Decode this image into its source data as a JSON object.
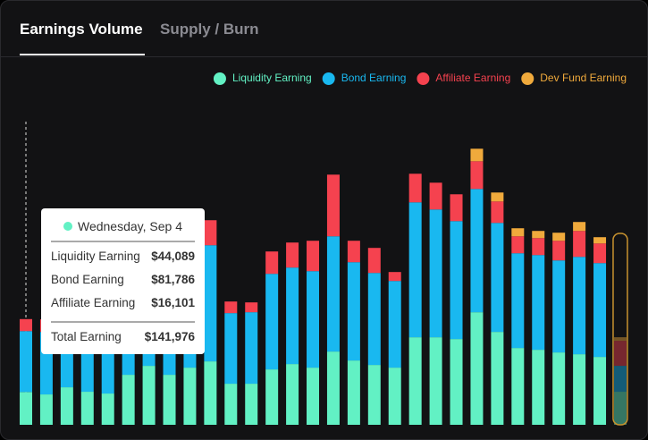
{
  "tabs": [
    "Earnings Volume",
    "Supply / Burn"
  ],
  "chart_data": {
    "type": "stacked_bar",
    "ylim": [
      0,
      400000
    ],
    "series": [
      {
        "name": "Liquidity Earning",
        "color": "#62f1c4",
        "values": [
          44089,
          40800,
          50400,
          44400,
          42000,
          67200,
          79200,
          67200,
          76800,
          85200,
          55200,
          55200,
          74400,
          81600,
          76800,
          98400,
          86400,
          80400,
          76800,
          117600,
          117600,
          115200,
          151200,
          124800,
          103200,
          100800,
          97200,
          94800,
          91200,
          44400
        ]
      },
      {
        "name": "Bond Earning",
        "color": "#19b8f0",
        "values": [
          81786,
          84000,
          78000,
          72000,
          66000,
          72000,
          78000,
          84000,
          156000,
          156000,
          94800,
          96000,
          128400,
          129600,
          129600,
          154800,
          132000,
          123600,
          116400,
          181200,
          171600,
          158400,
          165600,
          146400,
          127200,
          127200,
          123600,
          130800,
          126000,
          34800
        ]
      },
      {
        "name": "Affiliate Earning",
        "color": "#f5424f",
        "values": [
          16101,
          16800,
          18000,
          14400,
          14400,
          18000,
          24000,
          21600,
          33600,
          33600,
          15600,
          13200,
          30000,
          33600,
          40800,
          82800,
          28800,
          33600,
          12000,
          38400,
          36000,
          36000,
          37200,
          28800,
          22800,
          22800,
          26400,
          34800,
          26400,
          33600
        ]
      },
      {
        "name": "Dev Fund Earning",
        "color": "#f0aa3c",
        "values": [
          0,
          0,
          0,
          0,
          0,
          0,
          0,
          0,
          0,
          0,
          0,
          0,
          0,
          0,
          0,
          0,
          0,
          0,
          0,
          0,
          0,
          0,
          16800,
          12000,
          10800,
          9600,
          10800,
          12000,
          8400,
          4800
        ]
      }
    ],
    "tooltip": {
      "title": "Wednesday, Sep 4",
      "values": [
        "$44,089",
        "$81,786",
        "$16,101"
      ],
      "total_label": "Total Earning",
      "total": "$141,976"
    }
  }
}
